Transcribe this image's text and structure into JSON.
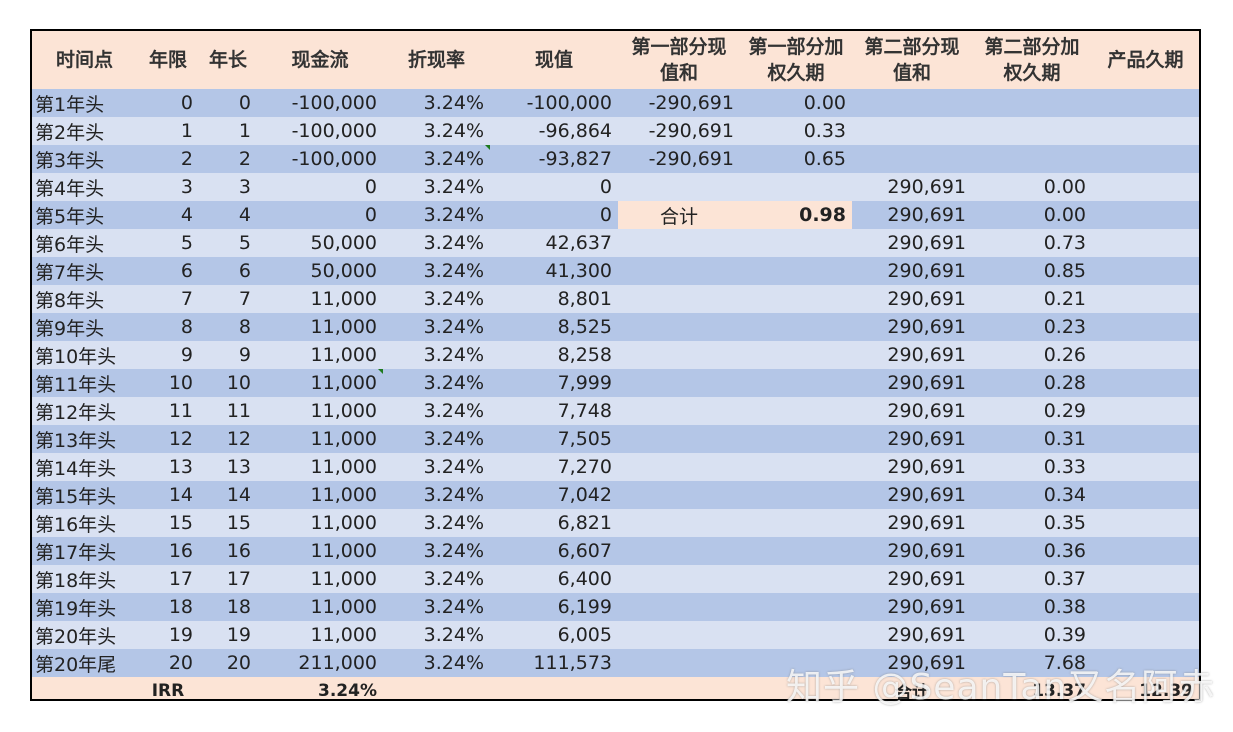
{
  "headers": {
    "time_point": "时间点",
    "term": "年限",
    "years": "年长",
    "cash_flow": "现金流",
    "discount_rate": "折现率",
    "present_value": "现值",
    "part1_pv_sum": [
      "第一部分现",
      "值和"
    ],
    "part1_weighted_duration": [
      "第一部分加",
      "权久期"
    ],
    "part2_pv_sum": [
      "第二部分现",
      "值和"
    ],
    "part2_weighted_duration": [
      "第二部分加",
      "权久期"
    ],
    "product_duration": "产品久期"
  },
  "rows": [
    {
      "time_point": "第1年头",
      "term": "0",
      "years": "0",
      "cash_flow": "-100,000",
      "discount_rate": "3.24%",
      "present_value": "-100,000",
      "p1_sum": "-290,691",
      "p1_dur": "0.00",
      "p2_sum": "",
      "p2_dur": "",
      "prod": ""
    },
    {
      "time_point": "第2年头",
      "term": "1",
      "years": "1",
      "cash_flow": "-100,000",
      "discount_rate": "3.24%",
      "present_value": "-96,864",
      "p1_sum": "-290,691",
      "p1_dur": "0.33",
      "p2_sum": "",
      "p2_dur": "",
      "prod": ""
    },
    {
      "time_point": "第3年头",
      "term": "2",
      "years": "2",
      "cash_flow": "-100,000",
      "discount_rate": "3.24%",
      "present_value": "-93,827",
      "p1_sum": "-290,691",
      "p1_dur": "0.65",
      "p2_sum": "",
      "p2_dur": "",
      "prod": ""
    },
    {
      "time_point": "第4年头",
      "term": "3",
      "years": "3",
      "cash_flow": "0",
      "discount_rate": "3.24%",
      "present_value": "0",
      "p1_sum": "",
      "p1_dur": "",
      "p2_sum": "290,691",
      "p2_dur": "0.00",
      "prod": ""
    },
    {
      "time_point": "第5年头",
      "term": "4",
      "years": "4",
      "cash_flow": "0",
      "discount_rate": "3.24%",
      "present_value": "0",
      "p1_sum": "合计",
      "p1_dur": "0.98",
      "p2_sum": "290,691",
      "p2_dur": "0.00",
      "prod": ""
    },
    {
      "time_point": "第6年头",
      "term": "5",
      "years": "5",
      "cash_flow": "50,000",
      "discount_rate": "3.24%",
      "present_value": "42,637",
      "p1_sum": "",
      "p1_dur": "",
      "p2_sum": "290,691",
      "p2_dur": "0.73",
      "prod": ""
    },
    {
      "time_point": "第7年头",
      "term": "6",
      "years": "6",
      "cash_flow": "50,000",
      "discount_rate": "3.24%",
      "present_value": "41,300",
      "p1_sum": "",
      "p1_dur": "",
      "p2_sum": "290,691",
      "p2_dur": "0.85",
      "prod": ""
    },
    {
      "time_point": "第8年头",
      "term": "7",
      "years": "7",
      "cash_flow": "11,000",
      "discount_rate": "3.24%",
      "present_value": "8,801",
      "p1_sum": "",
      "p1_dur": "",
      "p2_sum": "290,691",
      "p2_dur": "0.21",
      "prod": ""
    },
    {
      "time_point": "第9年头",
      "term": "8",
      "years": "8",
      "cash_flow": "11,000",
      "discount_rate": "3.24%",
      "present_value": "8,525",
      "p1_sum": "",
      "p1_dur": "",
      "p2_sum": "290,691",
      "p2_dur": "0.23",
      "prod": ""
    },
    {
      "time_point": "第10年头",
      "term": "9",
      "years": "9",
      "cash_flow": "11,000",
      "discount_rate": "3.24%",
      "present_value": "8,258",
      "p1_sum": "",
      "p1_dur": "",
      "p2_sum": "290,691",
      "p2_dur": "0.26",
      "prod": ""
    },
    {
      "time_point": "第11年头",
      "term": "10",
      "years": "10",
      "cash_flow": "11,000",
      "discount_rate": "3.24%",
      "present_value": "7,999",
      "p1_sum": "",
      "p1_dur": "",
      "p2_sum": "290,691",
      "p2_dur": "0.28",
      "prod": ""
    },
    {
      "time_point": "第12年头",
      "term": "11",
      "years": "11",
      "cash_flow": "11,000",
      "discount_rate": "3.24%",
      "present_value": "7,748",
      "p1_sum": "",
      "p1_dur": "",
      "p2_sum": "290,691",
      "p2_dur": "0.29",
      "prod": ""
    },
    {
      "time_point": "第13年头",
      "term": "12",
      "years": "12",
      "cash_flow": "11,000",
      "discount_rate": "3.24%",
      "present_value": "7,505",
      "p1_sum": "",
      "p1_dur": "",
      "p2_sum": "290,691",
      "p2_dur": "0.31",
      "prod": ""
    },
    {
      "time_point": "第14年头",
      "term": "13",
      "years": "13",
      "cash_flow": "11,000",
      "discount_rate": "3.24%",
      "present_value": "7,270",
      "p1_sum": "",
      "p1_dur": "",
      "p2_sum": "290,691",
      "p2_dur": "0.33",
      "prod": ""
    },
    {
      "time_point": "第15年头",
      "term": "14",
      "years": "14",
      "cash_flow": "11,000",
      "discount_rate": "3.24%",
      "present_value": "7,042",
      "p1_sum": "",
      "p1_dur": "",
      "p2_sum": "290,691",
      "p2_dur": "0.34",
      "prod": ""
    },
    {
      "time_point": "第16年头",
      "term": "15",
      "years": "15",
      "cash_flow": "11,000",
      "discount_rate": "3.24%",
      "present_value": "6,821",
      "p1_sum": "",
      "p1_dur": "",
      "p2_sum": "290,691",
      "p2_dur": "0.35",
      "prod": ""
    },
    {
      "time_point": "第17年头",
      "term": "16",
      "years": "16",
      "cash_flow": "11,000",
      "discount_rate": "3.24%",
      "present_value": "6,607",
      "p1_sum": "",
      "p1_dur": "",
      "p2_sum": "290,691",
      "p2_dur": "0.36",
      "prod": ""
    },
    {
      "time_point": "第18年头",
      "term": "17",
      "years": "17",
      "cash_flow": "11,000",
      "discount_rate": "3.24%",
      "present_value": "6,400",
      "p1_sum": "",
      "p1_dur": "",
      "p2_sum": "290,691",
      "p2_dur": "0.37",
      "prod": ""
    },
    {
      "time_point": "第19年头",
      "term": "18",
      "years": "18",
      "cash_flow": "11,000",
      "discount_rate": "3.24%",
      "present_value": "6,199",
      "p1_sum": "",
      "p1_dur": "",
      "p2_sum": "290,691",
      "p2_dur": "0.38",
      "prod": ""
    },
    {
      "time_point": "第20年头",
      "term": "19",
      "years": "19",
      "cash_flow": "11,000",
      "discount_rate": "3.24%",
      "present_value": "6,005",
      "p1_sum": "",
      "p1_dur": "",
      "p2_sum": "290,691",
      "p2_dur": "0.39",
      "prod": ""
    },
    {
      "time_point": "第20年尾",
      "term": "20",
      "years": "20",
      "cash_flow": "211,000",
      "discount_rate": "3.24%",
      "present_value": "111,573",
      "p1_sum": "",
      "p1_dur": "",
      "p2_sum": "290,691",
      "p2_dur": "7.68",
      "prod": ""
    }
  ],
  "footer": {
    "irr_label": "IRR",
    "irr_value": "3.24%",
    "total_label": "合计",
    "part2_total_duration": "13.37",
    "product_duration": "12.39"
  },
  "watermark": "知乎 @SeanTan又名阿赤",
  "colors": {
    "header_bg": "#fce4d6",
    "row_dark": "#b4c6e7",
    "row_light": "#d9e1f2",
    "comment_marker": "#1e7a1e"
  }
}
